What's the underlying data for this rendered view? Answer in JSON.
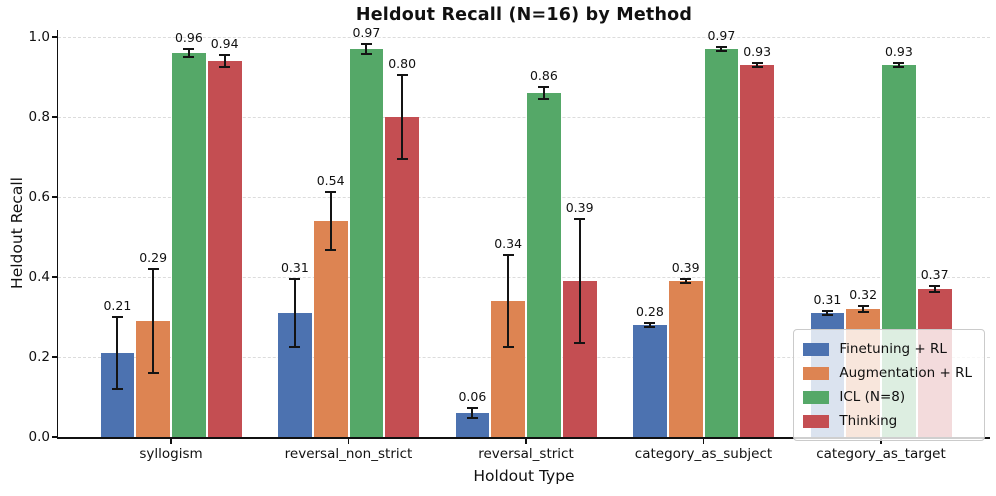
{
  "chart_data": {
    "type": "bar",
    "title": "Heldout Recall (N=16) by Method",
    "xlabel": "Holdout Type",
    "ylabel": "Heldout Recall",
    "ylim": [
      0,
      1.02
    ],
    "yticks": [
      0.0,
      0.2,
      0.4,
      0.6,
      0.8,
      1.0
    ],
    "grid": "horizontal dashed",
    "legend_position": "lower right",
    "categories": [
      "syllogism",
      "reversal_non_strict",
      "reversal_strict",
      "category_as_subject",
      "category_as_target"
    ],
    "series": [
      {
        "name": "Finetuning + RL",
        "color": "#4C72B0",
        "values": [
          0.21,
          0.31,
          0.06,
          0.28,
          0.31
        ],
        "errors": [
          0.09,
          0.085,
          0.013,
          0.004,
          0.004
        ]
      },
      {
        "name": "Augmentation + RL",
        "color": "#DD8452",
        "values": [
          0.29,
          0.54,
          0.34,
          0.39,
          0.32
        ],
        "errors": [
          0.13,
          0.072,
          0.115,
          0.004,
          0.008
        ]
      },
      {
        "name": "ICL (N=8)",
        "color": "#55A868",
        "values": [
          0.96,
          0.97,
          0.86,
          0.97,
          0.93
        ],
        "errors": [
          0.01,
          0.012,
          0.015,
          0.004,
          0.005
        ]
      },
      {
        "name": "Thinking",
        "color": "#C44E52",
        "values": [
          0.94,
          0.8,
          0.39,
          0.93,
          0.37
        ],
        "errors": [
          0.016,
          0.105,
          0.155,
          0.005,
          0.008
        ]
      }
    ],
    "error_bar_color": "#141414",
    "gridline_color": "#dcdcdc"
  }
}
